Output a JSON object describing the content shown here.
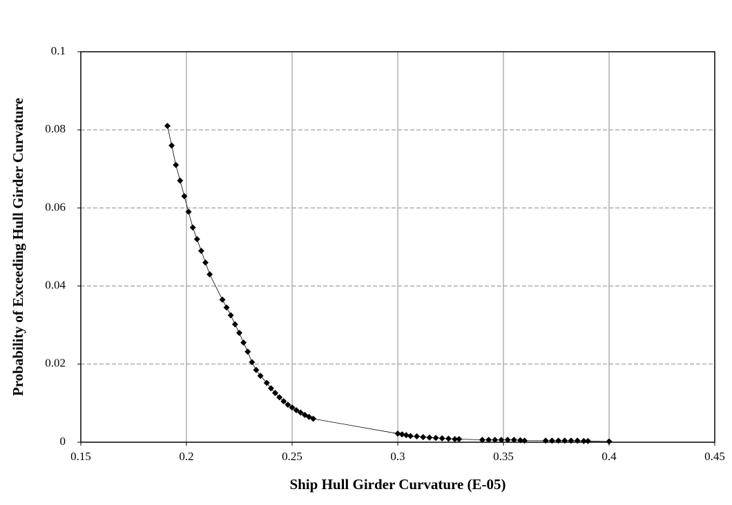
{
  "chart_data": {
    "type": "line",
    "x_label": "Ship Hull Girder Curvature (E-05)",
    "y_label": "Probability of Exceeding Hull Girder Curvature",
    "xlim": [
      0.15,
      0.45
    ],
    "xticks": [
      0.15,
      0.2,
      0.25,
      0.3,
      0.35,
      0.4,
      0.45
    ],
    "ylim": [
      0,
      0.1
    ],
    "yticks": [
      0,
      0.02,
      0.04,
      0.06,
      0.08,
      0.1
    ],
    "grid": true,
    "series": [
      {
        "color": "#000000",
        "x": [
          0.191,
          0.193,
          0.195,
          0.197,
          0.199,
          0.201,
          0.203,
          0.205,
          0.207,
          0.209,
          0.211,
          0.217,
          0.219,
          0.221,
          0.223,
          0.225,
          0.227,
          0.229,
          0.231,
          0.233,
          0.235,
          0.238,
          0.24,
          0.242,
          0.244,
          0.246,
          0.248,
          0.25,
          0.252,
          0.254,
          0.256,
          0.258,
          0.26,
          0.3,
          0.302,
          0.304,
          0.306,
          0.309,
          0.312,
          0.315,
          0.318,
          0.321,
          0.324,
          0.327,
          0.329,
          0.34,
          0.343,
          0.346,
          0.349,
          0.352,
          0.355,
          0.358,
          0.36,
          0.37,
          0.373,
          0.376,
          0.379,
          0.382,
          0.385,
          0.388,
          0.39,
          0.4
        ],
        "values": [
          0.081,
          0.076,
          0.071,
          0.067,
          0.063,
          0.059,
          0.055,
          0.052,
          0.049,
          0.046,
          0.043,
          0.0365,
          0.0345,
          0.0325,
          0.0302,
          0.028,
          0.0255,
          0.0232,
          0.0205,
          0.0185,
          0.017,
          0.0152,
          0.0138,
          0.0126,
          0.0115,
          0.0105,
          0.0096,
          0.0089,
          0.0082,
          0.0076,
          0.007,
          0.0065,
          0.006,
          0.0022,
          0.002,
          0.0018,
          0.0016,
          0.0015,
          0.0013,
          0.0012,
          0.0011,
          0.001,
          0.0009,
          0.0008,
          0.0008,
          0.0006,
          0.0006,
          0.0006,
          0.0006,
          0.0006,
          0.0006,
          0.0005,
          0.0004,
          0.0004,
          0.0004,
          0.0004,
          0.0004,
          0.0004,
          0.0004,
          0.0003,
          0.0003,
          0.0002
        ]
      }
    ]
  }
}
